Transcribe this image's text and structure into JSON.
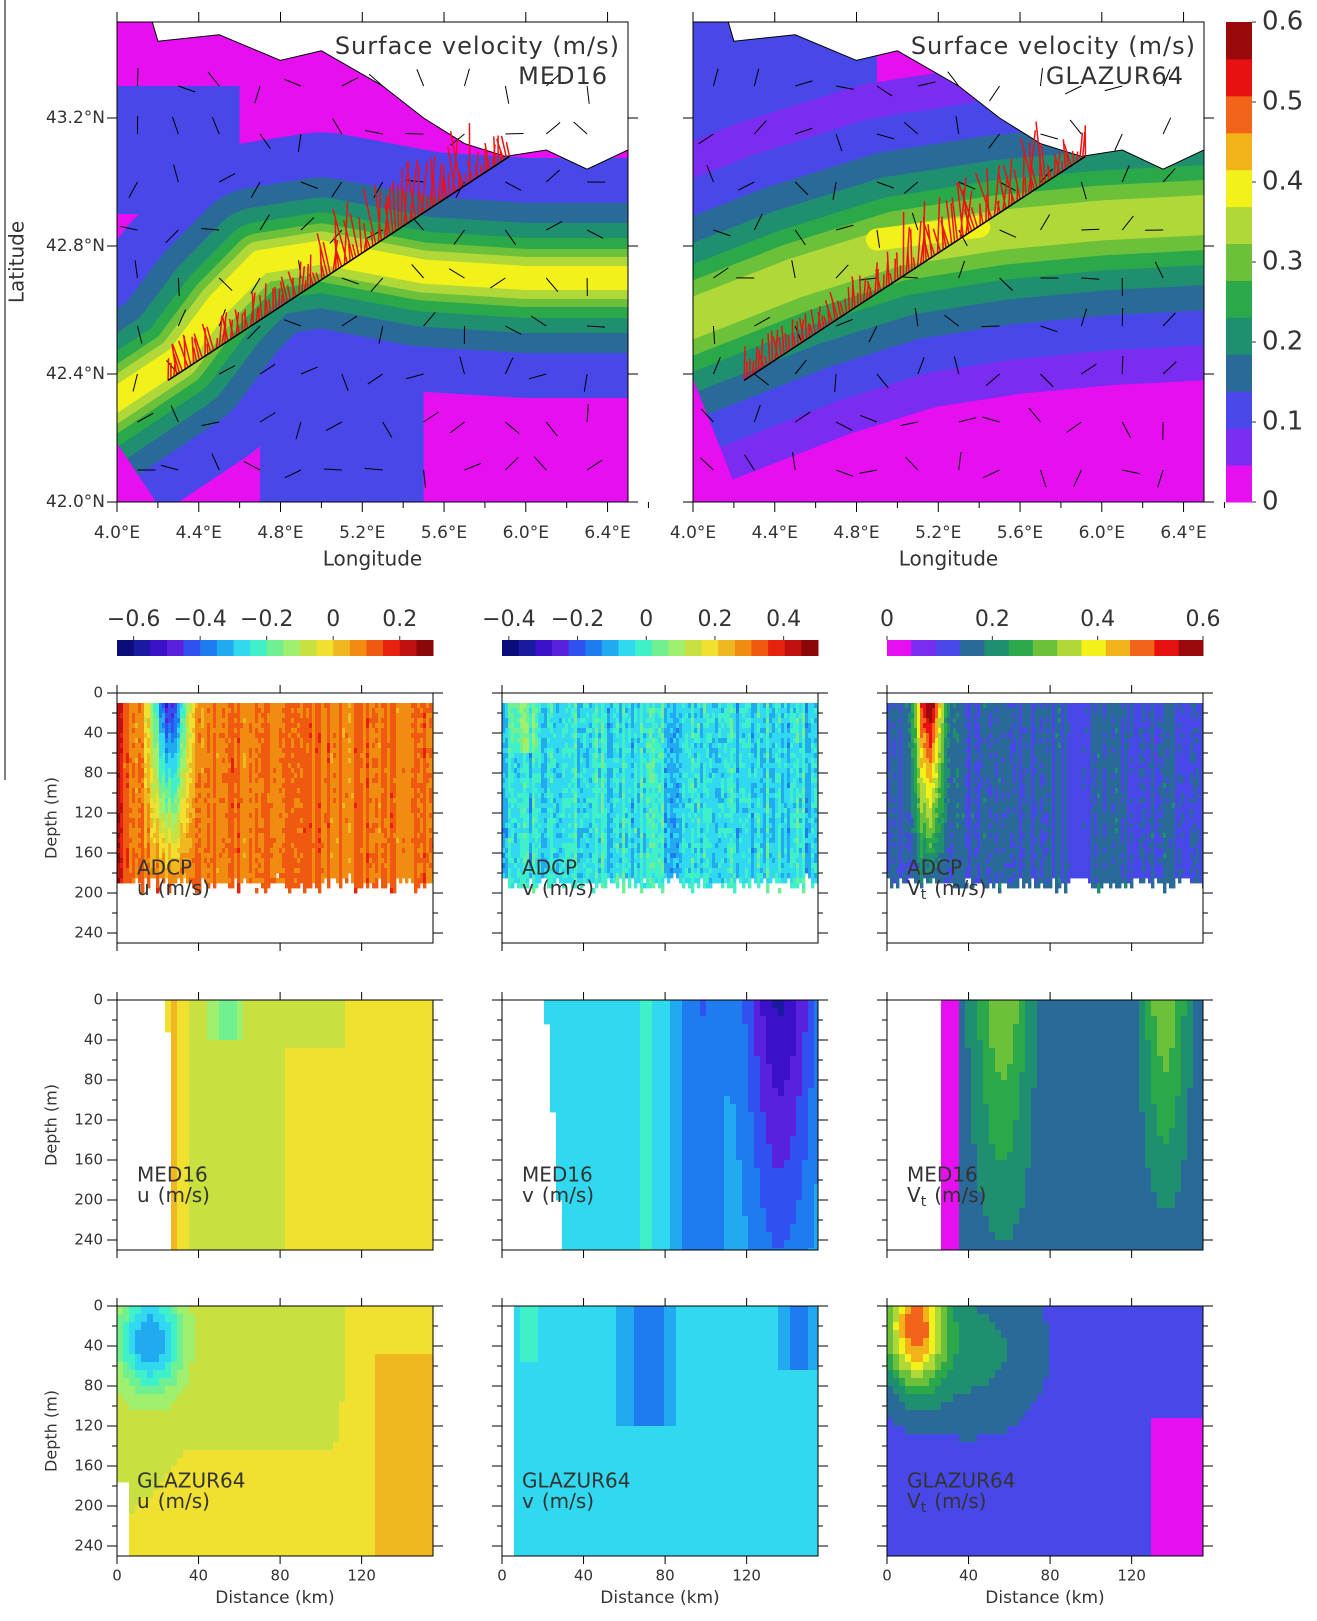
{
  "maps": {
    "panels": [
      {
        "title": "Surface velocity (m/s)",
        "label": "MED16"
      },
      {
        "title": "Surface velocity (m/s)",
        "label": "GLAZUR64"
      }
    ],
    "xlabel": "Longitude",
    "ylabel": "Latitude",
    "xlim": [
      4.0,
      6.5
    ],
    "ylim": [
      42.0,
      43.5
    ],
    "xticks": [
      {
        "value": 4.0,
        "label": "4.0°E"
      },
      {
        "value": 4.4,
        "label": "4.4°E"
      },
      {
        "value": 4.8,
        "label": "4.8°E"
      },
      {
        "value": 5.2,
        "label": "5.2°E"
      },
      {
        "value": 5.6,
        "label": "5.6°E"
      },
      {
        "value": 6.0,
        "label": "6.0°E"
      },
      {
        "value": 6.4,
        "label": "6.4°E"
      }
    ],
    "yticks": [
      {
        "value": 42.0,
        "label": "42.0°N"
      },
      {
        "value": 42.4,
        "label": "42.4°N"
      },
      {
        "value": 42.8,
        "label": "42.8°N"
      },
      {
        "value": 43.2,
        "label": "43.2°N"
      }
    ]
  },
  "map_colorbar": {
    "lim": [
      0,
      0.6
    ],
    "ticks": [
      0,
      0.1,
      0.2,
      0.3,
      0.4,
      0.5,
      0.6
    ],
    "colors": [
      "#e60ff0",
      "#7a2cf0",
      "#4848e8",
      "#2a6a98",
      "#1f8f70",
      "#2aa84a",
      "#6cc03a",
      "#b0d838",
      "#f2f21a",
      "#f2b21a",
      "#f2641a",
      "#e81010",
      "#9a0a0a"
    ]
  },
  "sections": {
    "rows": [
      {
        "source": "ADCP"
      },
      {
        "source": "MED16"
      },
      {
        "source": "GLAZUR64"
      }
    ],
    "variables": [
      {
        "name": "u",
        "unit": "(m/s)"
      },
      {
        "name": "v",
        "unit": "(m/s)"
      },
      {
        "name": "V",
        "subscript": "t",
        "unit": "(m/s)"
      }
    ],
    "ylabel": "Depth (m)",
    "xlabel": "Distance (km)",
    "ylim": [
      0,
      250
    ],
    "xlim": [
      0,
      155
    ],
    "yticks": [
      0,
      40,
      80,
      120,
      160,
      200,
      240
    ],
    "xticks": [
      0,
      40,
      80,
      120
    ],
    "colorbars": [
      {
        "lim": [
          -0.65,
          0.3
        ],
        "ticks": [
          {
            "value": -0.6,
            "label": "−0.6"
          },
          {
            "value": -0.4,
            "label": "−0.4"
          },
          {
            "value": -0.2,
            "label": "−0.2"
          },
          0,
          0.2
        ],
        "colors": [
          "#0b0b7a",
          "#1a1aa0",
          "#3a10c8",
          "#5a20e0",
          "#3050f0",
          "#1e7bf0",
          "#22aaf0",
          "#30d8f0",
          "#40f0c8",
          "#70f090",
          "#a0f070",
          "#c8e040",
          "#f0e030",
          "#f0b820",
          "#f08c10",
          "#f05a10",
          "#e82010",
          "#c01010",
          "#8a0808"
        ]
      },
      {
        "lim": [
          -0.42,
          0.5
        ],
        "ticks": [
          {
            "value": -0.4,
            "label": "−0.4"
          },
          {
            "value": -0.2,
            "label": "−0.2"
          },
          0,
          0.2,
          0.4
        ],
        "colors": [
          "#0b0b7a",
          "#1a1aa0",
          "#3a10c8",
          "#5a20e0",
          "#3050f0",
          "#1e7bf0",
          "#22aaf0",
          "#30d8f0",
          "#40f0c8",
          "#70f090",
          "#a0f070",
          "#c8e040",
          "#f0e030",
          "#f0b820",
          "#f08c10",
          "#f05a10",
          "#e82010",
          "#c01010",
          "#8a0808"
        ]
      },
      {
        "lim": [
          0,
          0.6
        ],
        "ticks": [
          0,
          0.2,
          0.4,
          0.6
        ],
        "colors": [
          "#e60ff0",
          "#7a2cf0",
          "#4848e8",
          "#2a6a98",
          "#1f8f70",
          "#2aa84a",
          "#6cc03a",
          "#b0d838",
          "#f2f21a",
          "#f2b21a",
          "#f2641a",
          "#e81010",
          "#9a0a0a"
        ]
      }
    ]
  }
}
